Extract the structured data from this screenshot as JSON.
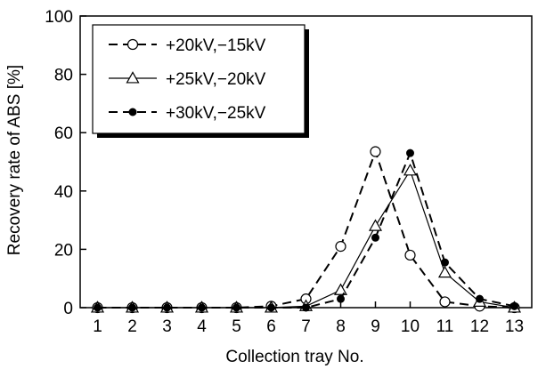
{
  "chart_data": {
    "type": "line",
    "xlabel": "Collection tray No.",
    "ylabel": "Recovery rate of ABS [%]",
    "xlim": [
      1,
      13
    ],
    "ylim": [
      0,
      100
    ],
    "x_ticks": [
      1,
      2,
      3,
      4,
      5,
      6,
      7,
      8,
      9,
      10,
      11,
      12,
      13
    ],
    "y_ticks": [
      0,
      20,
      40,
      60,
      80,
      100
    ],
    "grid": false,
    "legend_position": "top-left",
    "x": [
      1,
      2,
      3,
      4,
      5,
      6,
      7,
      8,
      9,
      10,
      11,
      12,
      13
    ],
    "series": [
      {
        "name": "+20kV,−15kV",
        "marker": "open-circle",
        "line": "dashed",
        "values": [
          0,
          0,
          0,
          0,
          0,
          0.5,
          3,
          21,
          53.5,
          18,
          2,
          0.5,
          0
        ]
      },
      {
        "name": "+25kV,−20kV",
        "marker": "open-triangle",
        "line": "solid",
        "values": [
          0,
          0,
          0,
          0,
          0,
          0,
          0.5,
          6,
          28,
          47,
          12,
          2,
          0
        ]
      },
      {
        "name": "+30kV,−25kV",
        "marker": "filled-circle",
        "line": "dashed",
        "values": [
          0,
          0,
          0,
          0,
          0,
          0,
          0,
          3,
          24,
          53,
          15.5,
          3,
          0.5
        ]
      }
    ]
  }
}
